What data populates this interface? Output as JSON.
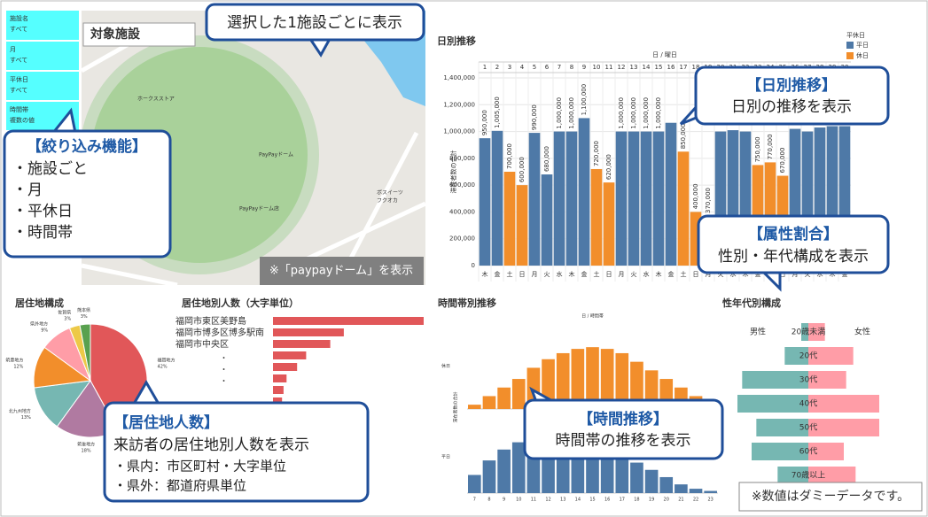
{
  "filters": [
    {
      "label": "施設名",
      "value": "すべて"
    },
    {
      "label": "月",
      "value": "すべて"
    },
    {
      "label": "平休日",
      "value": "すべて"
    },
    {
      "label": "時間帯",
      "value": "複数の値"
    }
  ],
  "map": {
    "title": "対象施設",
    "labels": [
      "ホークスストア",
      "PayPayドーム",
      "PayPayドーム店",
      "ボスイーツ",
      "フクオカ"
    ],
    "note": "※「paypayドーム」を表示"
  },
  "callouts": {
    "facility": {
      "lines": [
        "選択した1施設ごとに表示"
      ]
    },
    "filter": {
      "title": "【絞り込み機能】",
      "lines": [
        "・施設ごと",
        "・月",
        "・平休日",
        "・時間帯"
      ]
    },
    "daily": {
      "title": "【日別推移】",
      "lines": [
        "日別の推移を表示"
      ]
    },
    "attribute": {
      "title": "【属性割合】",
      "lines": [
        "性別・年代構成を表示"
      ]
    },
    "residence": {
      "title": "【居住地人数】",
      "lines": [
        "来訪者の居住地別人数を表示",
        "・県内：市区町村・大字単位",
        "・県外：都道府県単位"
      ]
    },
    "time": {
      "title": "【時間推移】",
      "lines": [
        "時間帯の推移を表示"
      ]
    }
  },
  "footnote": "※数値はダミーデータです。",
  "chart_data": [
    {
      "type": "bar",
      "title": "日別推移",
      "header": "日 / 曜日",
      "y_label": "滞在者数の合計",
      "categories": [
        1,
        2,
        3,
        4,
        5,
        6,
        7,
        8,
        9,
        10,
        11,
        12,
        13,
        14,
        15,
        16,
        17,
        18,
        19,
        20,
        21,
        22,
        23,
        24,
        25,
        26,
        27,
        28,
        29,
        30
      ],
      "weekdays": [
        "木",
        "金",
        "土",
        "日",
        "月",
        "火",
        "水",
        "木",
        "金",
        "土",
        "日",
        "月",
        "火",
        "水",
        "木",
        "金",
        "土",
        "日",
        "月",
        "火",
        "水",
        "木",
        "金",
        "土",
        "日",
        "月",
        "火",
        "水",
        "木",
        "金"
      ],
      "values": [
        950000,
        1005000,
        700000,
        600000,
        990000,
        680000,
        1000000,
        1000000,
        1100000,
        720000,
        620000,
        1000000,
        1000000,
        1000000,
        1000000,
        1065000,
        850000,
        400000,
        370000,
        1000000,
        1010000,
        1000000,
        750000,
        770000,
        670000,
        1020000,
        1000000,
        1030000,
        1040000,
        1040000
      ],
      "value_labels": [
        "950,000",
        "1,005,000",
        "700,000",
        "600,000",
        "990,000",
        "680,000",
        "1,000,000",
        "1,000,000",
        "1,100,000",
        "720,000",
        "620,000",
        "1,000,000",
        "1,000,000",
        "1,000,000",
        "1,000,000",
        null,
        "850,000",
        "400,000",
        "370,000",
        null,
        null,
        null,
        "750,000",
        "770,000",
        "670,000",
        null,
        null,
        null,
        null,
        null
      ],
      "day_types": [
        "平日",
        "平日",
        "休日",
        "休日",
        "平日",
        "平日",
        "平日",
        "平日",
        "平日",
        "休日",
        "休日",
        "平日",
        "平日",
        "平日",
        "平日",
        "平日",
        "休日",
        "休日",
        "平日",
        "平日",
        "平日",
        "平日",
        "休日",
        "休日",
        "休日",
        "平日",
        "平日",
        "平日",
        "平日",
        "平日"
      ],
      "legend": {
        "title": "平休日",
        "items": [
          {
            "name": "平日",
            "color": "#4e79a7"
          },
          {
            "name": "休日",
            "color": "#f28e2b"
          }
        ]
      },
      "ylim": [
        0,
        1400000
      ],
      "yticks": [
        0,
        {
          "value": 200000,
          "label": "200,000"
        },
        {
          "value": 400000,
          "label": "400,000"
        },
        {
          "value": 600000,
          "label": "600,000"
        },
        {
          "value": 800000,
          "label": "800,000"
        },
        {
          "value": 1000000,
          "label": "1,000,000"
        },
        {
          "value": 1200000,
          "label": "1,200,000"
        },
        {
          "value": 1400000,
          "label": "1,400,000"
        }
      ]
    },
    {
      "type": "pie",
      "title": "居住地構成",
      "categories": [
        "福岡地方",
        "筑後地方",
        "北九州地方",
        "筑豊地方",
        "県外地方",
        "佐賀県",
        "熊本県"
      ],
      "values": [
        42,
        18,
        13,
        12,
        9,
        3,
        3
      ],
      "value_labels": [
        "42%",
        "18%",
        "13%",
        "12%",
        "9%",
        "3%",
        "3%"
      ],
      "colors": [
        "#e15759",
        "#b07aa1",
        "#76b7b2",
        "#f28e2b",
        "#ff9da7",
        "#edc948",
        "#59a14f"
      ]
    },
    {
      "type": "hbar",
      "title": "居住地別人数（大字単位）",
      "categories": [
        "福岡市東区美野島",
        "福岡市博多区博多駅南",
        "福岡市中央区",
        null,
        null,
        null,
        null,
        null
      ],
      "ellipsis": [
        "・",
        "・",
        "・"
      ],
      "values": [
        100,
        47,
        38,
        22,
        16,
        9,
        7,
        6
      ],
      "color": "#e15759",
      "xlim": [
        0,
        100
      ]
    },
    {
      "type": "panels",
      "title": "時間帯別推移",
      "header": "日 / 時間帯",
      "y_label": "滞在者数の合計",
      "categories": [
        7,
        8,
        9,
        10,
        11,
        12,
        13,
        14,
        15,
        16,
        17,
        18,
        19,
        20,
        21,
        22,
        23
      ],
      "series": [
        {
          "name": "休日",
          "color": "#f28e2b",
          "values": [
            5,
            15,
            25,
            35,
            48,
            58,
            65,
            70,
            72,
            70,
            65,
            55,
            45,
            35,
            25,
            15,
            8
          ]
        },
        {
          "name": "平日",
          "color": "#4e79a7",
          "values": [
            25,
            45,
            60,
            70,
            78,
            80,
            78,
            74,
            70,
            62,
            52,
            42,
            32,
            22,
            12,
            6,
            3
          ]
        }
      ],
      "ylim": [
        0,
        100
      ]
    },
    {
      "type": "butterfly",
      "title": "性年代別構成",
      "categories": [
        "20歳未満",
        "20代",
        "30代",
        "40代",
        "50代",
        "60代",
        "70歳以上"
      ],
      "series": [
        {
          "name": "男性",
          "color": "#76b7b2",
          "values": [
            1.5,
            5,
            14,
            15,
            11,
            12,
            6.5
          ]
        },
        {
          "name": "女性",
          "color": "#ff9da7",
          "values": [
            3.5,
            9.5,
            8,
            15,
            15,
            7.5,
            10
          ]
        }
      ],
      "xlim": [
        0,
        18
      ]
    }
  ]
}
